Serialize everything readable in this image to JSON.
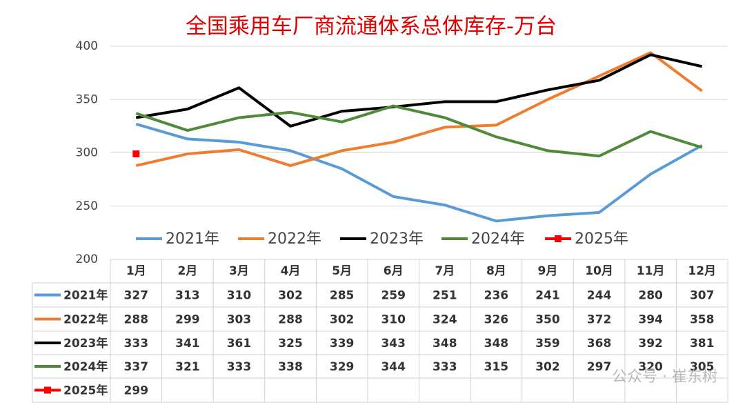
{
  "chart_data": {
    "type": "line",
    "title": "全国乘用车厂商流通体系总体库存-万台",
    "categories": [
      "1月",
      "2月",
      "3月",
      "4月",
      "5月",
      "6月",
      "7月",
      "8月",
      "9月",
      "10月",
      "11月",
      "12月"
    ],
    "series": [
      {
        "name": "2021年",
        "color": "#5b9bd5",
        "values": [
          327,
          313,
          310,
          302,
          285,
          259,
          251,
          236,
          241,
          244,
          280,
          307
        ]
      },
      {
        "name": "2022年",
        "color": "#ed7d31",
        "values": [
          288,
          299,
          303,
          288,
          302,
          310,
          324,
          326,
          350,
          372,
          394,
          358
        ]
      },
      {
        "name": "2023年",
        "color": "#000000",
        "values": [
          333,
          341,
          361,
          325,
          339,
          343,
          348,
          348,
          359,
          368,
          392,
          381
        ]
      },
      {
        "name": "2024年",
        "color": "#4e8a3a",
        "values": [
          337,
          321,
          333,
          338,
          329,
          344,
          333,
          315,
          302,
          297,
          320,
          305
        ]
      },
      {
        "name": "2025年",
        "color": "#ff0000",
        "values": [
          299,
          null,
          null,
          null,
          null,
          null,
          null,
          null,
          null,
          null,
          null,
          null
        ]
      }
    ],
    "ylim": [
      200,
      400
    ],
    "yticks": [
      200,
      250,
      300,
      350,
      400
    ],
    "grid": true,
    "watermark": "公众号 · 崔东树"
  }
}
